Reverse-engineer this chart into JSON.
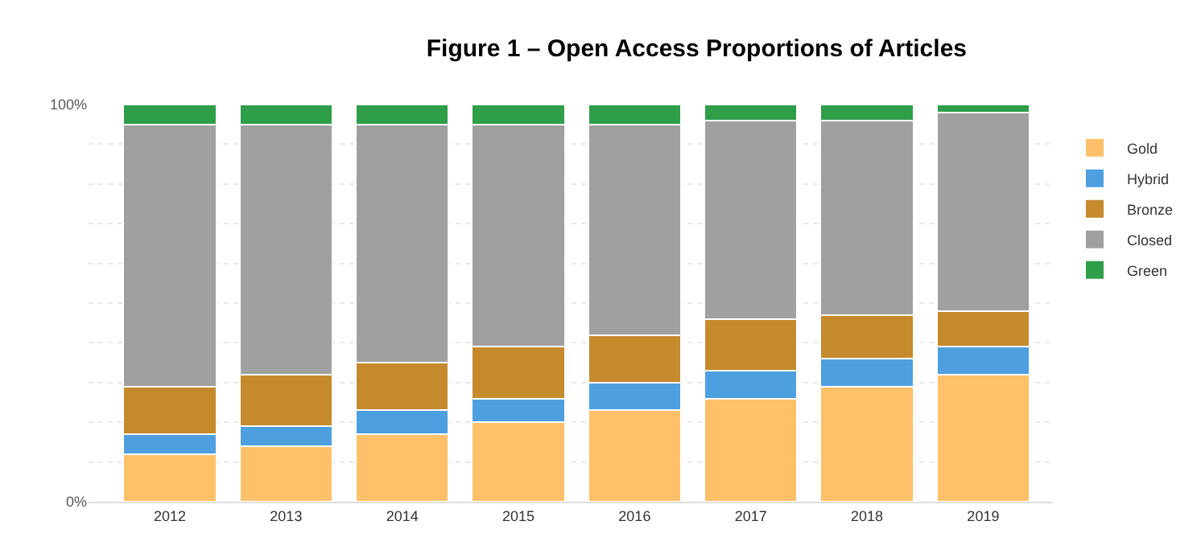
{
  "chart_data": {
    "type": "bar",
    "title": "Figure 1 – Open Access Proportions of Articles",
    "stacked": true,
    "categories": [
      "2012",
      "2013",
      "2014",
      "2015",
      "2016",
      "2017",
      "2018",
      "2019"
    ],
    "series": [
      {
        "name": "Gold",
        "color": "#fec16a",
        "values": [
          12,
          14,
          17,
          20,
          23,
          26,
          29,
          32
        ]
      },
      {
        "name": "Hybrid",
        "color": "#4d9fe0",
        "values": [
          5,
          5,
          6,
          6,
          7,
          7,
          7,
          7
        ]
      },
      {
        "name": "Bronze",
        "color": "#c58a2c",
        "values": [
          12,
          13,
          12,
          13,
          12,
          13,
          11,
          9
        ]
      },
      {
        "name": "Closed",
        "color": "#a0a0a0",
        "values": [
          66,
          63,
          60,
          56,
          53,
          50,
          49,
          50
        ]
      },
      {
        "name": "Green",
        "color": "#2e9e49",
        "values": [
          5,
          5,
          5,
          5,
          5,
          4,
          4,
          2
        ]
      }
    ],
    "ylim": [
      0,
      100
    ],
    "yticks": [
      {
        "value": 0,
        "label": "0%"
      },
      {
        "value": 10,
        "label": null
      },
      {
        "value": 20,
        "label": null
      },
      {
        "value": 30,
        "label": null
      },
      {
        "value": 40,
        "label": null
      },
      {
        "value": 50,
        "label": null
      },
      {
        "value": 60,
        "label": null
      },
      {
        "value": 70,
        "label": null
      },
      {
        "value": 80,
        "label": null
      },
      {
        "value": 90,
        "label": null
      },
      {
        "value": 100,
        "label": "100%"
      }
    ],
    "grid": "y",
    "legend": "top right"
  }
}
